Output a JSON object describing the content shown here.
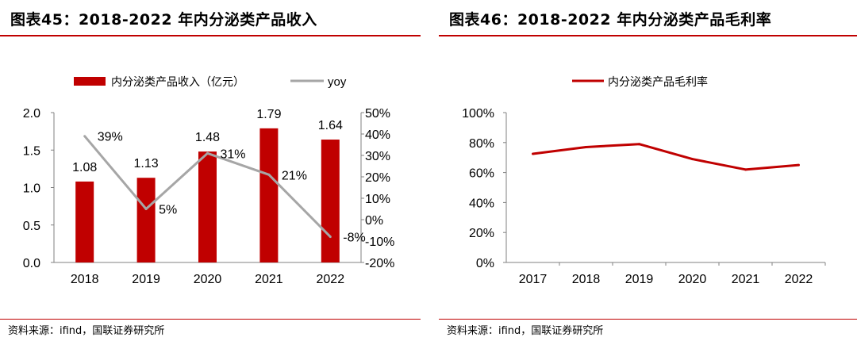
{
  "colors": {
    "bar": "#c00000",
    "yoy_line": "#a6a6a6",
    "margin_line": "#c00000",
    "axis": "#808080",
    "rule": "#c00000"
  },
  "chart_data": [
    {
      "id": "fig45",
      "title": "图表45：2018-2022 年内分泌类产品收入",
      "source": "资料来源：ifind，国联证券研究所",
      "type": "bar",
      "categories": [
        "2018",
        "2019",
        "2020",
        "2021",
        "2022"
      ],
      "series": [
        {
          "name": "内分泌类产品收入（亿元）",
          "type": "bar",
          "axis": "left",
          "values": [
            1.08,
            1.13,
            1.48,
            1.79,
            1.64
          ],
          "labels": [
            "1.08",
            "1.13",
            "1.48",
            "1.79",
            "1.64"
          ]
        },
        {
          "name": "yoy",
          "type": "line",
          "axis": "right",
          "values": [
            39,
            5,
            31,
            21,
            -8
          ],
          "labels": [
            "39%",
            "5%",
            "31%",
            "21%",
            "-8%"
          ]
        }
      ],
      "y_left": {
        "min": 0,
        "max": 2.0,
        "ticks": [
          "0.0",
          "0.5",
          "1.0",
          "1.5",
          "2.0"
        ]
      },
      "y_right": {
        "min": -20,
        "max": 50,
        "ticks": [
          "-20%",
          "-10%",
          "0%",
          "10%",
          "20%",
          "30%",
          "40%",
          "50%"
        ]
      },
      "legend_position": "top"
    },
    {
      "id": "fig46",
      "title": "图表46：2018-2022 年内分泌类产品毛利率",
      "source": "资料来源：ifind，国联证券研究所",
      "type": "line",
      "categories": [
        "2017",
        "2018",
        "2019",
        "2020",
        "2021",
        "2022"
      ],
      "series": [
        {
          "name": "内分泌类产品毛利率",
          "values": [
            72.5,
            77,
            79,
            69,
            62,
            65
          ]
        }
      ],
      "y": {
        "min": 0,
        "max": 100,
        "ticks": [
          "0%",
          "20%",
          "40%",
          "60%",
          "80%",
          "100%"
        ]
      },
      "legend_position": "top"
    }
  ]
}
